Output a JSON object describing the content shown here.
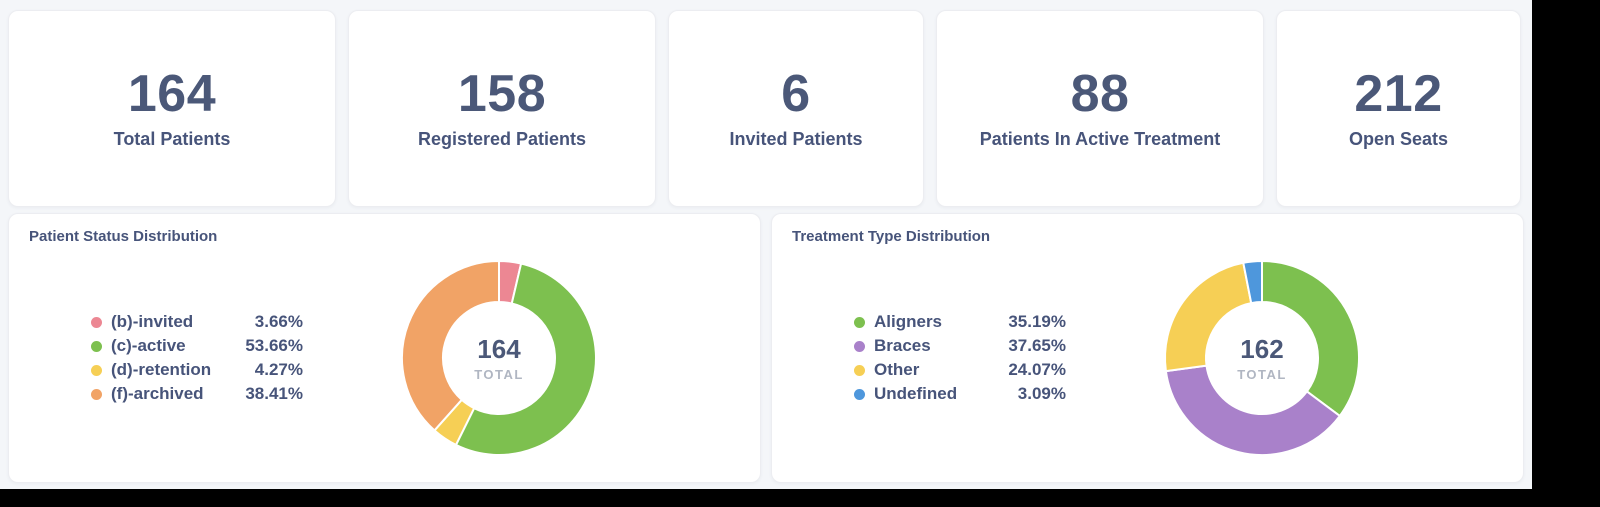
{
  "theme": {
    "page_bg": "#f4f6f9",
    "card_bg": "#ffffff",
    "text_primary": "#4b5878",
    "text_secondary": "#47547a",
    "text_muted": "#b0b6c2"
  },
  "stats": [
    {
      "value": "164",
      "label": "Total Patients"
    },
    {
      "value": "158",
      "label": "Registered Patients"
    },
    {
      "value": "6",
      "label": "Invited Patients"
    },
    {
      "value": "88",
      "label": "Patients In Active Treatment"
    },
    {
      "value": "212",
      "label": "Open Seats"
    }
  ],
  "chart_data": [
    {
      "type": "pie",
      "title": "Patient Status Distribution",
      "center_value": "164",
      "center_label": "TOTAL",
      "legend_position": "left",
      "donut": true,
      "start_angle_deg": 0,
      "segments": [
        {
          "label": "(b)-invited",
          "pct": 3.66,
          "pct_label": "3.66%",
          "color": "#ec8793"
        },
        {
          "label": "(c)-active",
          "pct": 53.66,
          "pct_label": "53.66%",
          "color": "#7dc04f"
        },
        {
          "label": "(d)-retention",
          "pct": 4.27,
          "pct_label": "4.27%",
          "color": "#f6cf55"
        },
        {
          "label": "(f)-archived",
          "pct": 38.41,
          "pct_label": "38.41%",
          "color": "#f1a366"
        }
      ]
    },
    {
      "type": "pie",
      "title": "Treatment Type Distribution",
      "center_value": "162",
      "center_label": "TOTAL",
      "legend_position": "left",
      "donut": true,
      "start_angle_deg": 0,
      "segments": [
        {
          "label": "Aligners",
          "pct": 35.19,
          "pct_label": "35.19%",
          "color": "#7dc04f"
        },
        {
          "label": "Braces",
          "pct": 37.65,
          "pct_label": "37.65%",
          "color": "#a981ca"
        },
        {
          "label": "Other",
          "pct": 24.07,
          "pct_label": "24.07%",
          "color": "#f6cf55"
        },
        {
          "label": "Undefined",
          "pct": 3.09,
          "pct_label": "3.09%",
          "color": "#4e97dc"
        }
      ]
    }
  ]
}
